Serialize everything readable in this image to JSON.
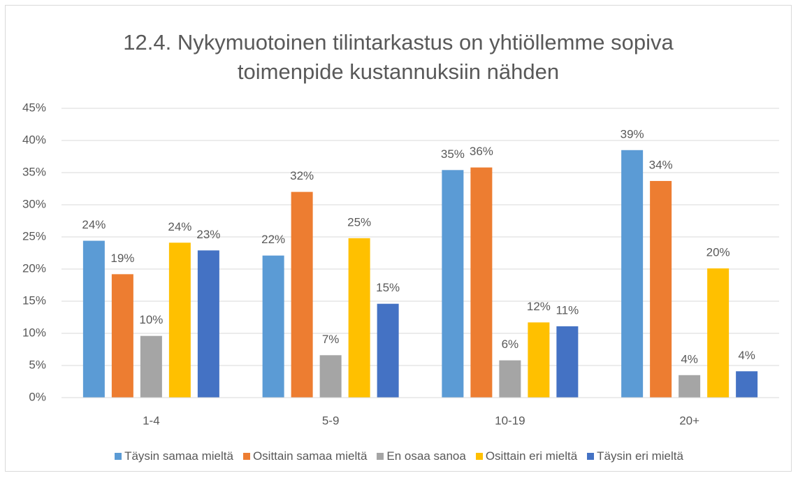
{
  "chart_data": {
    "type": "bar",
    "title": "12.4. Nykymuotoinen tilintarkastus on yhtiöllemme sopiva toimenpide kustannuksiin nähden",
    "categories": [
      "1-4",
      "5-9",
      "10-19",
      "20+"
    ],
    "series": [
      {
        "name": "Täysin samaa mieltä",
        "color": "#5b9bd5",
        "values": [
          24.4,
          22.1,
          35.4,
          38.5
        ],
        "value_labels": [
          "24%",
          "22%",
          "35%",
          "39%"
        ]
      },
      {
        "name": "Osittain samaa mieltä",
        "color": "#ed7d31",
        "values": [
          19.2,
          32.0,
          35.8,
          33.7
        ],
        "value_labels": [
          "19%",
          "32%",
          "36%",
          "34%"
        ]
      },
      {
        "name": "En osaa sanoa",
        "color": "#a5a5a5",
        "values": [
          9.6,
          6.6,
          5.8,
          3.5
        ],
        "value_labels": [
          "10%",
          "7%",
          "6%",
          "4%"
        ]
      },
      {
        "name": "Osittain eri mieltä",
        "color": "#ffc000",
        "values": [
          24.1,
          24.8,
          11.7,
          20.1
        ],
        "value_labels": [
          "24%",
          "25%",
          "12%",
          "20%"
        ]
      },
      {
        "name": "Täysin eri mieltä",
        "color": "#4472c4",
        "values": [
          22.9,
          14.6,
          11.1,
          4.1
        ],
        "value_labels": [
          "23%",
          "15%",
          "11%",
          "4%"
        ]
      }
    ],
    "ylim": [
      0,
      45
    ],
    "yticks": [
      {
        "value": 0,
        "label": "0%"
      },
      {
        "value": 5,
        "label": "5%"
      },
      {
        "value": 10,
        "label": "10%"
      },
      {
        "value": 15,
        "label": "15%"
      },
      {
        "value": 20,
        "label": "20%"
      },
      {
        "value": 25,
        "label": "25%"
      },
      {
        "value": 30,
        "label": "30%"
      },
      {
        "value": 35,
        "label": "35%"
      },
      {
        "value": 40,
        "label": "40%"
      },
      {
        "value": 45,
        "label": "45%"
      }
    ],
    "grid": true,
    "legend": "bottom"
  }
}
